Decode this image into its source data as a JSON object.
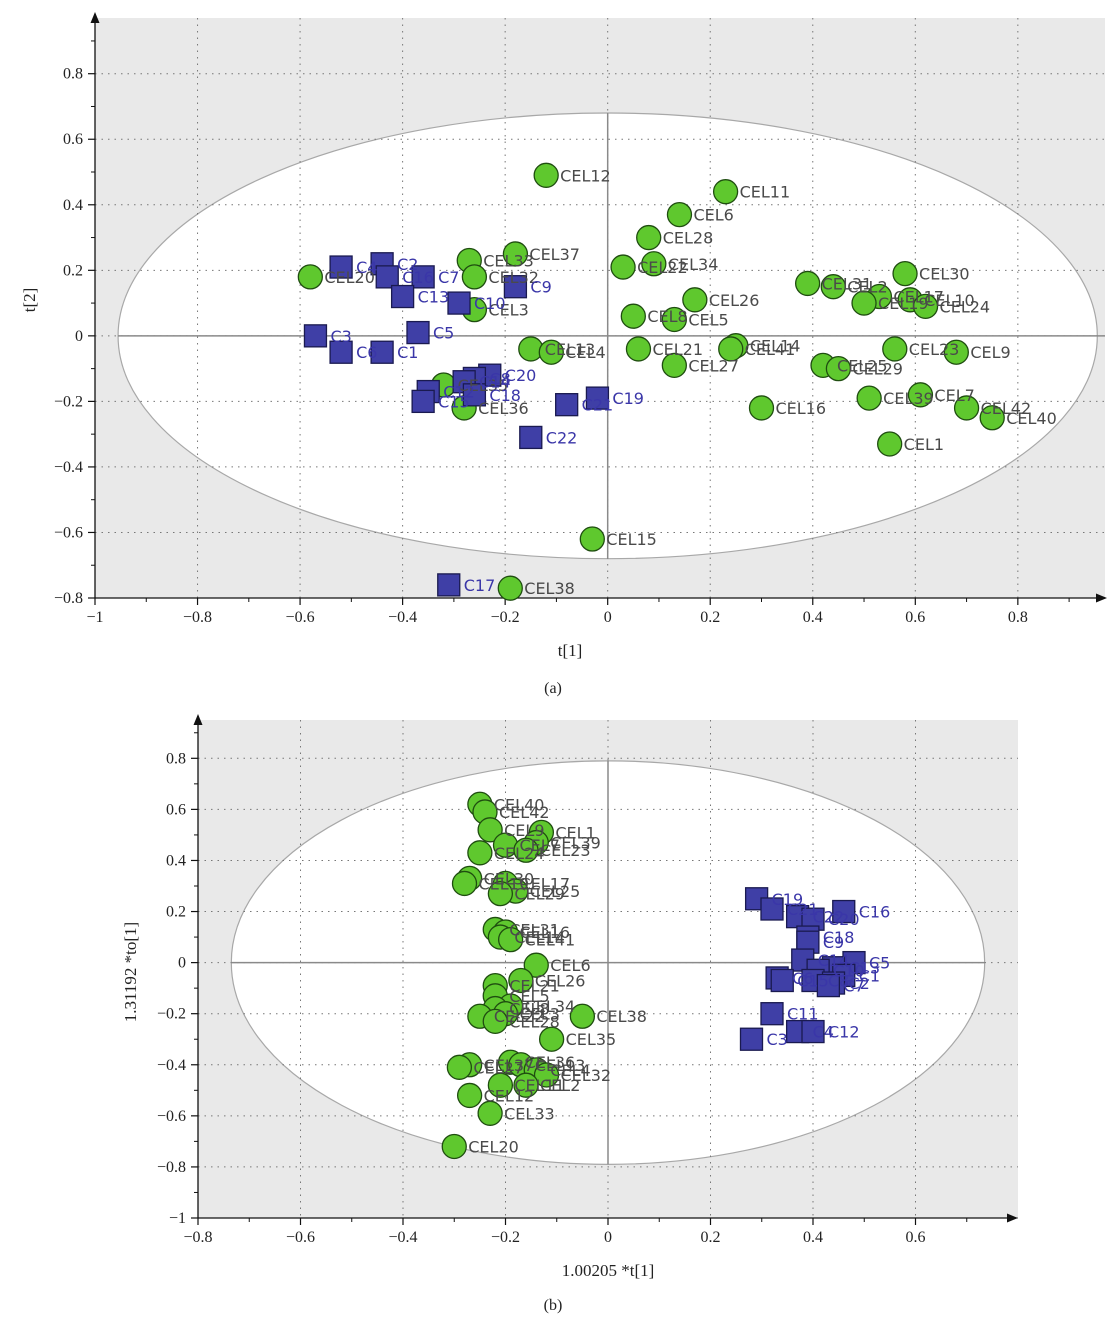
{
  "colors": {
    "background_shade": "#e9e9e9",
    "ellipse_fill": "#ffffff",
    "cel_fill": "#5fc82e",
    "cel_stroke": "#1f4d10",
    "c_fill": "#3f3fa6",
    "c_stroke": "#1a1a50",
    "cel_label": "#4a4a4a",
    "c_label": "#3a36a8"
  },
  "chart_data": [
    {
      "type": "scatter",
      "panel_label": "(a)",
      "xlabel": "t[1]",
      "ylabel": "t[2]",
      "xlim": [
        -1,
        0.97
      ],
      "ylim": [
        -0.8,
        0.97
      ],
      "xticks": [
        "−1",
        "−0.8",
        "−0.6",
        "−0.4",
        "−0.2",
        "0",
        "0.2",
        "0.4",
        "0.6",
        "0.8"
      ],
      "xtick_values": [
        -1,
        -0.8,
        -0.6,
        -0.4,
        -0.2,
        0,
        0.2,
        0.4,
        0.6,
        0.8
      ],
      "yticks": [
        "−0.8",
        "−0.6",
        "−0.4",
        "−0.2",
        "0",
        "0.2",
        "0.4",
        "0.6",
        "0.8"
      ],
      "ytick_values": [
        -0.8,
        -0.6,
        -0.4,
        -0.2,
        0,
        0.2,
        0.4,
        0.6,
        0.8
      ],
      "grid": "dotted",
      "ellipse": {
        "center": [
          0,
          0
        ],
        "rx": 0.955,
        "ry": 0.68
      },
      "series": [
        {
          "marker": "circle",
          "points": [
            {
              "label": "CEL12",
              "x": -0.12,
              "y": 0.49
            },
            {
              "label": "CEL11",
              "x": 0.23,
              "y": 0.44
            },
            {
              "label": "CEL6",
              "x": 0.14,
              "y": 0.37
            },
            {
              "label": "CEL28",
              "x": 0.08,
              "y": 0.3
            },
            {
              "label": "CEL37",
              "x": -0.18,
              "y": 0.25
            },
            {
              "label": "CEL33",
              "x": -0.27,
              "y": 0.23
            },
            {
              "label": "CEL34",
              "x": 0.09,
              "y": 0.22
            },
            {
              "label": "CEL22",
              "x": 0.03,
              "y": 0.21
            },
            {
              "label": "CEL32",
              "x": -0.26,
              "y": 0.18
            },
            {
              "label": "CEL20",
              "x": -0.58,
              "y": 0.18
            },
            {
              "label": "CEL30",
              "x": 0.58,
              "y": 0.19
            },
            {
              "label": "CEL31",
              "x": 0.39,
              "y": 0.16
            },
            {
              "label": "CEL2",
              "x": 0.44,
              "y": 0.15
            },
            {
              "label": "CEL17",
              "x": 0.53,
              "y": 0.12
            },
            {
              "label": "CEL10",
              "x": 0.59,
              "y": 0.11
            },
            {
              "label": "CEL19",
              "x": 0.5,
              "y": 0.1
            },
            {
              "label": "CEL24",
              "x": 0.62,
              "y": 0.09
            },
            {
              "label": "CEL26",
              "x": 0.17,
              "y": 0.11
            },
            {
              "label": "CEL3",
              "x": -0.26,
              "y": 0.08
            },
            {
              "label": "CEL8",
              "x": 0.05,
              "y": 0.06
            },
            {
              "label": "CEL5",
              "x": 0.13,
              "y": 0.05
            },
            {
              "label": "CEL13",
              "x": -0.15,
              "y": -0.04
            },
            {
              "label": "CEL4",
              "x": -0.11,
              "y": -0.05
            },
            {
              "label": "CEL21",
              "x": 0.06,
              "y": -0.04
            },
            {
              "label": "CEL14",
              "x": 0.25,
              "y": -0.03
            },
            {
              "label": "CEL41",
              "x": 0.24,
              "y": -0.04
            },
            {
              "label": "CEL23",
              "x": 0.56,
              "y": -0.04
            },
            {
              "label": "CEL9",
              "x": 0.68,
              "y": -0.05
            },
            {
              "label": "CEL27",
              "x": 0.13,
              "y": -0.09
            },
            {
              "label": "CEL25",
              "x": 0.42,
              "y": -0.09
            },
            {
              "label": "CEL29",
              "x": 0.45,
              "y": -0.1
            },
            {
              "label": "CEL35",
              "x": -0.32,
              "y": -0.15
            },
            {
              "label": "CEL39",
              "x": 0.51,
              "y": -0.19
            },
            {
              "label": "CEL7",
              "x": 0.61,
              "y": -0.18
            },
            {
              "label": "CEL36",
              "x": -0.28,
              "y": -0.22
            },
            {
              "label": "CEL16",
              "x": 0.3,
              "y": -0.22
            },
            {
              "label": "CEL42",
              "x": 0.7,
              "y": -0.22
            },
            {
              "label": "CEL40",
              "x": 0.75,
              "y": -0.25
            },
            {
              "label": "CEL1",
              "x": 0.55,
              "y": -0.33
            },
            {
              "label": "CEL15",
              "x": -0.03,
              "y": -0.62
            },
            {
              "label": "CEL38",
              "x": -0.19,
              "y": -0.77
            }
          ]
        },
        {
          "marker": "square",
          "points": [
            {
              "label": "C2",
              "x": -0.44,
              "y": 0.22
            },
            {
              "label": "C4",
              "x": -0.52,
              "y": 0.21
            },
            {
              "label": "C7",
              "x": -0.36,
              "y": 0.18
            },
            {
              "label": "C16",
              "x": -0.43,
              "y": 0.18
            },
            {
              "label": "C9",
              "x": -0.18,
              "y": 0.15
            },
            {
              "label": "C13",
              "x": -0.4,
              "y": 0.12
            },
            {
              "label": "C10",
              "x": -0.29,
              "y": 0.1
            },
            {
              "label": "C3",
              "x": -0.57,
              "y": 0.0
            },
            {
              "label": "C5",
              "x": -0.37,
              "y": 0.01
            },
            {
              "label": "C6",
              "x": -0.52,
              "y": -0.05
            },
            {
              "label": "C1",
              "x": -0.44,
              "y": -0.05
            },
            {
              "label": "C20",
              "x": -0.23,
              "y": -0.12
            },
            {
              "label": "C8",
              "x": -0.26,
              "y": -0.13
            },
            {
              "label": "C14",
              "x": -0.28,
              "y": -0.14
            },
            {
              "label": "C18",
              "x": -0.26,
              "y": -0.18
            },
            {
              "label": "C12",
              "x": -0.35,
              "y": -0.17
            },
            {
              "label": "C15",
              "x": -0.36,
              "y": -0.2
            },
            {
              "label": "C21",
              "x": -0.08,
              "y": -0.21
            },
            {
              "label": "C19",
              "x": -0.02,
              "y": -0.19
            },
            {
              "label": "C22",
              "x": -0.15,
              "y": -0.31
            },
            {
              "label": "C17",
              "x": -0.31,
              "y": -0.76
            }
          ]
        }
      ]
    },
    {
      "type": "scatter",
      "panel_label": "(b)",
      "xlabel": "1.00205 *t[1]",
      "ylabel": "1.31192 *to[1]",
      "xlim": [
        -0.8,
        0.8
      ],
      "ylim": [
        -1,
        0.95
      ],
      "xticks": [
        "−0.8",
        "−0.6",
        "−0.4",
        "−0.2",
        "0",
        "0.2",
        "0.4",
        "0.6"
      ],
      "xtick_values": [
        -0.8,
        -0.6,
        -0.4,
        -0.2,
        0,
        0.2,
        0.4,
        0.6
      ],
      "yticks": [
        "−1",
        "−0.8",
        "−0.6",
        "−0.4",
        "−0.2",
        "0",
        "0.2",
        "0.4",
        "0.6",
        "0.8"
      ],
      "ytick_values": [
        -1,
        -0.8,
        -0.6,
        -0.4,
        -0.2,
        0,
        0.2,
        0.4,
        0.6,
        0.8
      ],
      "grid": "dotted",
      "ellipse": {
        "center": [
          0,
          0
        ],
        "rx": 0.735,
        "ry": 0.79
      },
      "series": [
        {
          "marker": "circle",
          "points": [
            {
              "label": "CEL40",
              "x": -0.25,
              "y": 0.62
            },
            {
              "label": "CEL42",
              "x": -0.24,
              "y": 0.59
            },
            {
              "label": "CEL9",
              "x": -0.23,
              "y": 0.52
            },
            {
              "label": "CEL1",
              "x": -0.13,
              "y": 0.51
            },
            {
              "label": "CEL7",
              "x": -0.2,
              "y": 0.46
            },
            {
              "label": "CEL39",
              "x": -0.14,
              "y": 0.47
            },
            {
              "label": "CEL23",
              "x": -0.16,
              "y": 0.44
            },
            {
              "label": "CEL24",
              "x": -0.25,
              "y": 0.43
            },
            {
              "label": "CEL30",
              "x": -0.27,
              "y": 0.33
            },
            {
              "label": "CEL19",
              "x": -0.28,
              "y": 0.31
            },
            {
              "label": "CEL17",
              "x": -0.2,
              "y": 0.31
            },
            {
              "label": "CEL25",
              "x": -0.18,
              "y": 0.28
            },
            {
              "label": "CEL29",
              "x": -0.21,
              "y": 0.27
            },
            {
              "label": "CEL31",
              "x": -0.22,
              "y": 0.13
            },
            {
              "label": "CEL16",
              "x": -0.2,
              "y": 0.12
            },
            {
              "label": "CEL14",
              "x": -0.21,
              "y": 0.1
            },
            {
              "label": "CEL41",
              "x": -0.19,
              "y": 0.09
            },
            {
              "label": "CEL6",
              "x": -0.14,
              "y": -0.01
            },
            {
              "label": "CEL26",
              "x": -0.17,
              "y": -0.07
            },
            {
              "label": "CEL21",
              "x": -0.22,
              "y": -0.09
            },
            {
              "label": "CEL5",
              "x": -0.22,
              "y": -0.13
            },
            {
              "label": "CEL34",
              "x": -0.19,
              "y": -0.17
            },
            {
              "label": "CEL8",
              "x": -0.22,
              "y": -0.18
            },
            {
              "label": "CEL3",
              "x": -0.2,
              "y": -0.2
            },
            {
              "label": "CEL22",
              "x": -0.25,
              "y": -0.21
            },
            {
              "label": "CEL28",
              "x": -0.22,
              "y": -0.23
            },
            {
              "label": "CEL38",
              "x": -0.05,
              "y": -0.21
            },
            {
              "label": "CEL35",
              "x": -0.11,
              "y": -0.3
            },
            {
              "label": "CEL36",
              "x": -0.19,
              "y": -0.39
            },
            {
              "label": "CEL37",
              "x": -0.27,
              "y": -0.4
            },
            {
              "label": "CEL13",
              "x": -0.17,
              "y": -0.4
            },
            {
              "label": "CEL4",
              "x": -0.14,
              "y": -0.42
            },
            {
              "label": "CEL27",
              "x": -0.29,
              "y": -0.41
            },
            {
              "label": "CEL32",
              "x": -0.12,
              "y": -0.44
            },
            {
              "label": "CEL2",
              "x": -0.16,
              "y": -0.48
            },
            {
              "label": "CEL11",
              "x": -0.21,
              "y": -0.48
            },
            {
              "label": "CEL12",
              "x": -0.27,
              "y": -0.52
            },
            {
              "label": "CEL33",
              "x": -0.23,
              "y": -0.59
            },
            {
              "label": "CEL20",
              "x": -0.3,
              "y": -0.72
            }
          ]
        },
        {
          "marker": "square",
          "points": [
            {
              "label": "C19",
              "x": 0.29,
              "y": 0.25
            },
            {
              "label": "C21",
              "x": 0.32,
              "y": 0.21
            },
            {
              "label": "C16",
              "x": 0.46,
              "y": 0.2
            },
            {
              "label": "C22",
              "x": 0.37,
              "y": 0.18
            },
            {
              "label": "C20",
              "x": 0.4,
              "y": 0.17
            },
            {
              "label": "C18",
              "x": 0.39,
              "y": 0.1
            },
            {
              "label": "C9",
              "x": 0.39,
              "y": 0.08
            },
            {
              "label": "C5",
              "x": 0.48,
              "y": 0.0
            },
            {
              "label": "C14",
              "x": 0.38,
              "y": 0.01
            },
            {
              "label": "C13",
              "x": 0.44,
              "y": -0.02
            },
            {
              "label": "C10",
              "x": 0.41,
              "y": -0.03
            },
            {
              "label": "C1",
              "x": 0.46,
              "y": -0.05
            },
            {
              "label": "C6",
              "x": 0.33,
              "y": -0.06
            },
            {
              "label": "C15",
              "x": 0.34,
              "y": -0.07
            },
            {
              "label": "C8",
              "x": 0.4,
              "y": -0.07
            },
            {
              "label": "C2",
              "x": 0.44,
              "y": -0.08
            },
            {
              "label": "C7",
              "x": 0.43,
              "y": -0.09
            },
            {
              "label": "C11",
              "x": 0.32,
              "y": -0.2
            },
            {
              "label": "C4",
              "x": 0.37,
              "y": -0.27
            },
            {
              "label": "C12",
              "x": 0.4,
              "y": -0.27
            },
            {
              "label": "C3",
              "x": 0.28,
              "y": -0.3
            }
          ]
        }
      ]
    }
  ]
}
